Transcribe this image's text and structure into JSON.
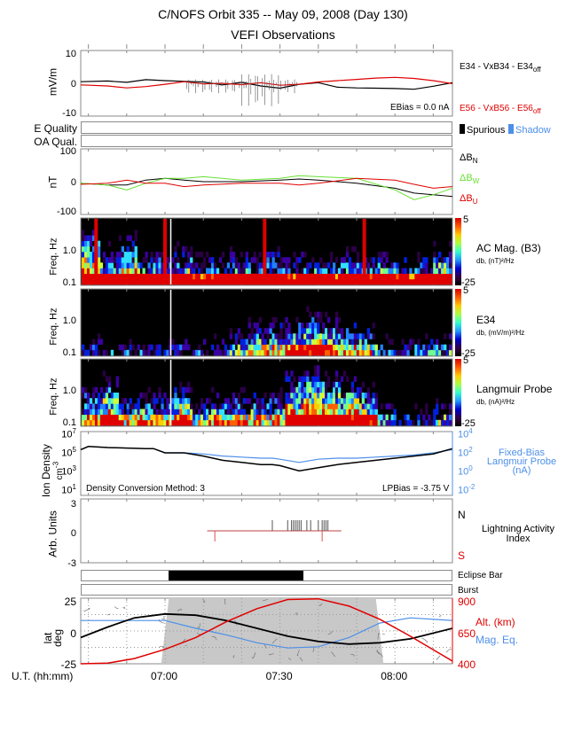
{
  "header": {
    "title": "C/NOFS Orbit 335  --  May 09, 2008 (Day 130)",
    "subtitle": "VEFI Observations"
  },
  "colors": {
    "red": "#e00000",
    "blue": "#4d8fe8",
    "green": "#66e033",
    "black": "#000000",
    "gray_axis": "#8a8a8a",
    "eclipse": "#c8c8c8"
  },
  "time_axis": {
    "label": "U.T. (hh:mm)",
    "start_min": 398,
    "end_min": 495,
    "ticks": [
      {
        "min": 420,
        "label": "07:00"
      },
      {
        "min": 450,
        "label": "07:30"
      },
      {
        "min": 480,
        "label": "08:00"
      }
    ],
    "minor_every_min": 10
  },
  "chart_data": [
    {
      "id": "efield",
      "type": "line",
      "ylabel": "mV/m",
      "ylim": [
        -10,
        10
      ],
      "yticks": [
        "10",
        "0",
        "-10"
      ],
      "annotation": "EBias = 0.0 nA",
      "series": [
        {
          "name": "E34 - VxB34 - E34off",
          "color": "#000000",
          "t": [
            398,
            405,
            410,
            415,
            420,
            425,
            430,
            435,
            440,
            445,
            450,
            455,
            460,
            465,
            470,
            475,
            480,
            485,
            490,
            495
          ],
          "y": [
            0.5,
            0.7,
            0.3,
            1.1,
            0.8,
            0.6,
            0.4,
            -0.5,
            0.3,
            -0.8,
            -1.5,
            -0.3,
            0.2,
            -1.2,
            -1.4,
            -1.5,
            -1.6,
            -1.8,
            -0.9,
            0.2
          ]
        },
        {
          "name": "E56 - VxB56 - E56off",
          "color": "#e00000",
          "t": [
            398,
            405,
            410,
            415,
            420,
            425,
            430,
            435,
            440,
            445,
            450,
            455,
            460,
            465,
            470,
            475,
            480,
            485,
            490,
            495
          ],
          "y": [
            -0.5,
            -0.8,
            -1.4,
            -1.0,
            -0.3,
            0.5,
            -0.2,
            0.0,
            -0.4,
            0.2,
            -0.6,
            -0.3,
            0.4,
            0.8,
            1.2,
            1.6,
            1.8,
            1.5,
            0.8,
            -0.1
          ]
        }
      ],
      "legend": [
        "E34 - VxB34 - E34",
        "off",
        "E56 - VxB56 - E56",
        "off"
      ]
    },
    {
      "id": "bfield",
      "type": "line",
      "ylabel": "nT",
      "ylim": [
        -100,
        100
      ],
      "yticks": [
        "100",
        "0",
        "-100"
      ],
      "series": [
        {
          "name": "ΔB_N",
          "color": "#000000",
          "t": [
            398,
            405,
            410,
            415,
            420,
            425,
            430,
            440,
            450,
            455,
            460,
            470,
            480,
            485,
            490,
            495
          ],
          "y": [
            -5,
            -10,
            -10,
            5,
            10,
            5,
            0,
            0,
            5,
            8,
            5,
            -5,
            -20,
            -35,
            -40,
            -45
          ]
        },
        {
          "name": "ΔB_W",
          "color": "#66e033",
          "t": [
            398,
            405,
            410,
            415,
            420,
            425,
            430,
            440,
            450,
            455,
            460,
            470,
            480,
            485,
            490,
            495
          ],
          "y": [
            -5,
            -10,
            -25,
            -5,
            10,
            10,
            15,
            5,
            10,
            18,
            15,
            10,
            -25,
            -55,
            -40,
            -20
          ]
        },
        {
          "name": "ΔB_U",
          "color": "#e00000",
          "t": [
            398,
            405,
            410,
            415,
            420,
            425,
            430,
            440,
            450,
            455,
            460,
            470,
            480,
            485,
            490,
            495
          ],
          "y": [
            -8,
            -5,
            5,
            -5,
            -5,
            -15,
            -10,
            -5,
            -5,
            -10,
            -5,
            10,
            5,
            -8,
            -20,
            -15
          ]
        }
      ]
    },
    {
      "id": "acmag",
      "type": "heatmap",
      "ylabel": "Freq. Hz",
      "yticks": [
        "1.0",
        "0.1"
      ],
      "title": "AC Mag. (B3)",
      "units": "db, (nT)²/Hz",
      "colorbar": {
        "max": "5",
        "min": "-25"
      },
      "activity": [
        0.9,
        0.6,
        0.8,
        0.5,
        0.5,
        0.6,
        0.4,
        0.4,
        0.5,
        0.4,
        0.5,
        0.4,
        0.4,
        0.4,
        0.5,
        0.4,
        0.5,
        0.4,
        0.4,
        0.6
      ],
      "spikes_min": [
        402,
        420,
        446,
        472
      ]
    },
    {
      "id": "e34spec",
      "type": "heatmap",
      "ylabel": "Freq. Hz",
      "yticks": [
        "1.0",
        "0.1"
      ],
      "title": "E34",
      "units": "db, (mV/m)²/Hz",
      "colorbar": {
        "max": "5",
        "min": "-25"
      },
      "activity": [
        0.1,
        0.1,
        0.1,
        0.1,
        0.1,
        0.1,
        0.1,
        0.1,
        0.3,
        0.5,
        0.5,
        0.6,
        0.7,
        0.6,
        0.5,
        0.4,
        0.1,
        0.1,
        0.2,
        0.2
      ]
    },
    {
      "id": "lpspec",
      "type": "heatmap",
      "ylabel": "Freq. Hz",
      "yticks": [
        "1.0",
        "0.1"
      ],
      "title": "Langmuir Probe",
      "units": "db, (nA)²/Hz",
      "colorbar": {
        "max": "5",
        "min": "-25"
      },
      "activity": [
        0.6,
        0.8,
        0.5,
        0.5,
        0.5,
        0.7,
        0.4,
        0.5,
        0.5,
        0.5,
        0.5,
        0.9,
        1.0,
        0.9,
        0.8,
        0.7,
        0.2,
        0.1,
        0.1,
        0.3
      ]
    },
    {
      "id": "density",
      "type": "line",
      "ylabel": "Ion Density cm-3",
      "yscale": "log",
      "ylim_log10": [
        1,
        7
      ],
      "yticks": [
        {
          "base": "10",
          "exp": "7"
        },
        {
          "base": "10",
          "exp": "5"
        },
        {
          "base": "10",
          "exp": "3"
        },
        {
          "base": "10",
          "exp": "1"
        }
      ],
      "right_axis": {
        "label": [
          "Fixed-Bias",
          "Langmuir Probe",
          "(nA)"
        ],
        "ylim_log10": [
          -2,
          4
        ],
        "ticks": [
          {
            "base": "10",
            "exp": "4"
          },
          {
            "base": "10",
            "exp": "2"
          },
          {
            "base": "10",
            "exp": "0"
          },
          {
            "base": "10",
            "exp": "-2"
          }
        ]
      },
      "annotation_left": "Density Conversion Method: 3",
      "annotation_right": "LPBias = -3.75 V",
      "series": [
        {
          "name": "Ion Density",
          "color": "#000000",
          "t": [
            398,
            400,
            405,
            415,
            417,
            420,
            425,
            430,
            435,
            440,
            445,
            448,
            450,
            455,
            460,
            465,
            470,
            475,
            480,
            485,
            490,
            495
          ],
          "y_log10": [
            5.3,
            5.6,
            5.5,
            5.4,
            5.4,
            5.0,
            5.0,
            4.7,
            4.3,
            4.1,
            3.9,
            3.9,
            3.8,
            3.3,
            3.6,
            3.9,
            4.1,
            4.3,
            4.5,
            4.7,
            4.9,
            5.4
          ]
        },
        {
          "name": "Fixed-Bias LP",
          "color": "#4d8fe8",
          "t": [
            398,
            400,
            405,
            415,
            417,
            420,
            425,
            430,
            435,
            440,
            445,
            448,
            450,
            455,
            460,
            465,
            470,
            475,
            480,
            485,
            490,
            495
          ],
          "y_log10": [
            5.3,
            5.6,
            5.5,
            5.4,
            5.4,
            5.0,
            5.0,
            4.9,
            4.7,
            4.6,
            4.5,
            4.5,
            4.4,
            4.1,
            4.4,
            4.5,
            4.5,
            4.6,
            4.7,
            4.8,
            5.0,
            5.3
          ]
        }
      ]
    },
    {
      "id": "lightning",
      "type": "bar",
      "ylabel": "Arb. Units",
      "ylim": [
        -3,
        3
      ],
      "yticks": [
        "3",
        "0",
        "-3"
      ],
      "title": [
        "Lightning Activity",
        "Index"
      ],
      "north_label": "N",
      "south_label": "S",
      "baseline_range_min": [
        431,
        466
      ],
      "north_events_min": [
        448,
        452,
        453,
        453.5,
        454,
        454.5,
        455,
        455.5,
        457,
        458,
        460,
        461,
        461.5,
        462,
        462.5
      ],
      "north_value": 1,
      "south_events_min": [
        433,
        461
      ],
      "south_value": -1
    },
    {
      "id": "orbit",
      "type": "line",
      "ylabel": "lat deg",
      "ylim": [
        -25,
        25
      ],
      "yticks": [
        "25",
        "0",
        "-25"
      ],
      "right_axis": {
        "ylim": [
          400,
          900
        ],
        "ticks": [
          "900",
          "650",
          "400"
        ]
      },
      "eclipse_shade_min": [
        419,
        477
      ],
      "series": [
        {
          "name": "lat",
          "color": "#000000",
          "t": [
            398,
            405,
            412,
            420,
            428,
            436,
            444,
            452,
            460,
            468,
            476,
            484,
            495
          ],
          "y": [
            -5,
            3,
            10,
            13,
            12,
            8,
            2,
            -4,
            -8,
            -10,
            -9,
            -6,
            2
          ]
        },
        {
          "name": "Alt. (km)",
          "color": "#e00000",
          "axis": "right",
          "t": [
            398,
            405,
            412,
            420,
            428,
            436,
            444,
            452,
            460,
            468,
            476,
            484,
            495
          ],
          "y": [
            400,
            405,
            440,
            510,
            600,
            720,
            820,
            890,
            895,
            840,
            740,
            610,
            420
          ]
        },
        {
          "name": "Mag. Eq.",
          "color": "#4d8fe8",
          "t": [
            398,
            405,
            412,
            420,
            428,
            436,
            444,
            452,
            460,
            468,
            476,
            484,
            495
          ],
          "y": [
            8,
            8,
            8,
            8,
            2,
            -3,
            -9,
            -13,
            -12,
            -5,
            6,
            10,
            8
          ]
        }
      ]
    }
  ],
  "quality": {
    "e_quality_label": "E Quality",
    "oa_quality_label": "OA Qual.",
    "legend_spurious": "Spurious",
    "legend_shadow": "Shadow"
  },
  "eclipse": {
    "label": "Eclipse Bar",
    "start_min": 421,
    "end_min": 456
  },
  "burst": {
    "label": "Burst"
  }
}
